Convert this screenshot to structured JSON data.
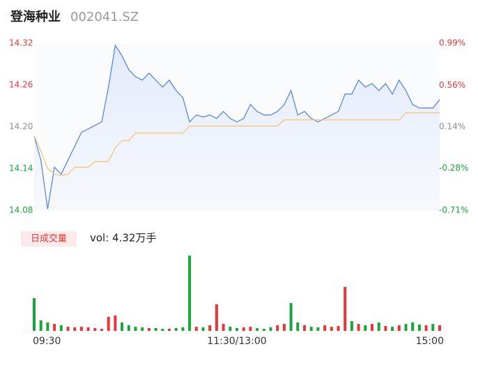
{
  "chart_data": [
    {
      "type": "line",
      "title": "登海种业",
      "subtitle": "002041.SZ",
      "categories": [
        null,
        null,
        null,
        null,
        null,
        null,
        null,
        null,
        null,
        null,
        null,
        null,
        null,
        null,
        null,
        null,
        null,
        null,
        null,
        null,
        null,
        null,
        null,
        null,
        null,
        null,
        null,
        null,
        null,
        null,
        null,
        null,
        null,
        null,
        null,
        null,
        null,
        null,
        null,
        null,
        null,
        null,
        null,
        null,
        null,
        null,
        null,
        null,
        null,
        null,
        null,
        null,
        null,
        null,
        null,
        null,
        null,
        null,
        null,
        null,
        null
      ],
      "series": [
        {
          "color": "#4a7fe8",
          "values": [
            14.187,
            14.152,
            14.082,
            14.142,
            14.132,
            14.152,
            14.172,
            14.192,
            14.197,
            14.202,
            14.207,
            14.257,
            14.317,
            14.302,
            14.282,
            14.272,
            14.267,
            14.277,
            14.267,
            14.257,
            14.267,
            14.252,
            14.242,
            14.207,
            14.217,
            14.214,
            14.217,
            14.212,
            14.222,
            14.212,
            14.207,
            14.212,
            14.232,
            14.222,
            14.217,
            14.217,
            14.222,
            14.232,
            14.252,
            14.217,
            14.222,
            14.212,
            14.207,
            14.212,
            14.217,
            14.222,
            14.247,
            14.247,
            14.267,
            14.257,
            14.262,
            14.252,
            14.262,
            14.247,
            14.267,
            14.252,
            14.232,
            14.227,
            14.227,
            14.227,
            14.239
          ]
        },
        {
          "color": "#f5c26b",
          "values": [
            14.187,
            14.165,
            14.14,
            14.132,
            14.13,
            14.132,
            14.142,
            14.142,
            14.142,
            14.15,
            14.15,
            14.15,
            14.17,
            14.18,
            14.18,
            14.191,
            14.191,
            14.191,
            14.191,
            14.191,
            14.191,
            14.191,
            14.191,
            14.201,
            14.201,
            14.201,
            14.201,
            14.201,
            14.201,
            14.201,
            14.201,
            14.201,
            14.201,
            14.201,
            14.201,
            14.201,
            14.201,
            14.21,
            14.21,
            14.21,
            14.21,
            14.21,
            14.21,
            14.21,
            14.21,
            14.21,
            14.21,
            14.21,
            14.21,
            14.21,
            14.21,
            14.21,
            14.21,
            14.21,
            14.21,
            14.22,
            14.22,
            14.22,
            14.22,
            14.22,
            14.22
          ]
        }
      ],
      "ylim": [
        14.08,
        14.32
      ],
      "yticks": [
        14.32,
        14.26,
        {
          "value": 14.2,
          "label": "14.20"
        },
        14.14,
        14.08
      ],
      "ytick_colors": [
        "#e8353a",
        "#e8353a",
        "#8c8c8c",
        "#1aa53a",
        "#1aa53a"
      ],
      "y2lim": [
        -0.71,
        0.99
      ],
      "y2ticks": [
        {
          "value": 0.99,
          "label": "0.99%"
        },
        {
          "value": 0.56,
          "label": "0.56%"
        },
        {
          "value": 0.14,
          "label": "0.14%"
        },
        {
          "value": -0.28,
          "label": "-0.28%"
        },
        {
          "value": -0.71,
          "label": "-0.71%"
        }
      ],
      "grid": false
    },
    {
      "type": "bar",
      "title": "日成交量",
      "annotation": "vol: 4.32万手",
      "categories": [
        "09:30",
        null,
        null,
        null,
        null,
        null,
        null,
        null,
        null,
        null,
        null,
        null,
        null,
        null,
        null,
        null,
        null,
        null,
        null,
        null,
        null,
        null,
        null,
        null,
        null,
        null,
        null,
        null,
        null,
        null,
        "11:30/13:00",
        null,
        null,
        null,
        null,
        null,
        null,
        null,
        null,
        null,
        null,
        null,
        null,
        null,
        null,
        null,
        null,
        null,
        null,
        null,
        null,
        null,
        null,
        null,
        null,
        null,
        null,
        null,
        null,
        null,
        "15:00"
      ],
      "values": [
        1280,
        410,
        330,
        270,
        220,
        160,
        140,
        160,
        140,
        110,
        80,
        550,
        600,
        330,
        220,
        160,
        140,
        110,
        110,
        80,
        80,
        110,
        140,
        2950,
        160,
        140,
        220,
        1040,
        270,
        160,
        110,
        140,
        160,
        110,
        80,
        140,
        220,
        270,
        1090,
        330,
        220,
        160,
        140,
        220,
        160,
        190,
        1720,
        380,
        270,
        220,
        270,
        330,
        190,
        160,
        220,
        270,
        330,
        250,
        220,
        270,
        220
      ],
      "colors": [
        "#1aa53a",
        "#1aa53a",
        "#1aa53a",
        "#e8353a",
        "#1aa53a",
        "#e8353a",
        "#e8353a",
        "#e8353a",
        "#e8353a",
        "#e8353a",
        "#e8353a",
        "#e8353a",
        "#e8353a",
        "#1aa53a",
        "#1aa53a",
        "#1aa53a",
        "#1aa53a",
        "#e8353a",
        "#1aa53a",
        "#1aa53a",
        "#e8353a",
        "#1aa53a",
        "#1aa53a",
        "#1aa53a",
        "#e8353a",
        "#1aa53a",
        "#e8353a",
        "#e8353a",
        "#e8353a",
        "#1aa53a",
        "#1aa53a",
        "#e8353a",
        "#e8353a",
        "#1aa53a",
        "#1aa53a",
        "#1aa53a",
        "#e8353a",
        "#e8353a",
        "#1aa53a",
        "#1aa53a",
        "#e8353a",
        "#1aa53a",
        "#1aa53a",
        "#e8353a",
        "#e8353a",
        "#e8353a",
        "#e8353a",
        "#1aa53a",
        "#e8353a",
        "#1aa53a",
        "#e8353a",
        "#1aa53a",
        "#e8353a",
        "#1aa53a",
        "#e8353a",
        "#1aa53a",
        "#1aa53a",
        "#1aa53a",
        "#e8353a",
        "#1aa53a",
        "#e8353a"
      ],
      "ylim": [
        0,
        3000
      ]
    }
  ]
}
